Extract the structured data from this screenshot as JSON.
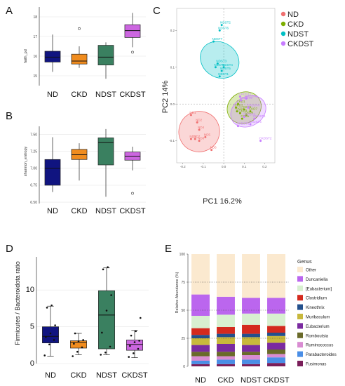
{
  "panels": {
    "A": {
      "letter": "A",
      "ylabel": "faith_pd"
    },
    "B": {
      "letter": "B",
      "ylabel": "shannon_entropy"
    },
    "C": {
      "letter": "C",
      "xlabel": "PC1 16.2%",
      "ylabel": "PC2 14%"
    },
    "D": {
      "letter": "D",
      "ylabel": "Firmicutes / Bacteroidota ratio"
    },
    "E": {
      "letter": "E",
      "ylabel": "Relative Abundance (%)",
      "legend_title": "Genus"
    }
  },
  "groups": [
    "ND",
    "CKD",
    "NDST",
    "CKDST"
  ],
  "group_colors": {
    "ND": "#101480",
    "CKD": "#f08c1e",
    "NDST": "#3a8060",
    "CKDST": "#cc66e0"
  },
  "chart_data": [
    {
      "panel": "A",
      "type": "box",
      "ylabel": "faith_pd",
      "categories": [
        "ND",
        "CKD",
        "NDST",
        "CKDST"
      ],
      "y_ticks": [
        15,
        16,
        17,
        18
      ],
      "ylim": [
        14.5,
        18.5
      ],
      "boxes": [
        {
          "name": "ND",
          "min": 15.2,
          "q1": 15.7,
          "median": 15.95,
          "q3": 16.25,
          "max": 17.1,
          "outliers": []
        },
        {
          "name": "CKD",
          "min": 15.4,
          "q1": 15.6,
          "median": 15.75,
          "q3": 16.1,
          "max": 16.5,
          "outliers": [
            17.4
          ]
        },
        {
          "name": "NDST",
          "min": 14.85,
          "q1": 15.55,
          "median": 15.95,
          "q3": 16.55,
          "max": 16.7,
          "outliers": []
        },
        {
          "name": "CKDST",
          "min": 16.45,
          "q1": 16.95,
          "median": 17.3,
          "q3": 17.6,
          "max": 18.2,
          "outliers": [
            16.2
          ]
        }
      ]
    },
    {
      "panel": "B",
      "type": "box",
      "ylabel": "shannon_entropy",
      "categories": [
        "ND",
        "CKD",
        "NDST",
        "CKDST"
      ],
      "y_ticks": [
        6.5,
        6.75,
        7.0,
        7.25,
        7.5
      ],
      "y_tick_labels": [
        "6.50",
        "6.75",
        "7.00",
        "7.25",
        "7.50"
      ],
      "ylim": [
        6.48,
        7.62
      ],
      "boxes": [
        {
          "name": "ND",
          "min": 6.65,
          "q1": 6.75,
          "median": 7.0,
          "q3": 7.13,
          "max": 7.46,
          "outliers": []
        },
        {
          "name": "CKD",
          "min": 6.82,
          "q1": 7.13,
          "median": 7.2,
          "q3": 7.28,
          "max": 7.37,
          "outliers": []
        },
        {
          "name": "NDST",
          "min": 6.58,
          "q1": 7.05,
          "median": 7.38,
          "q3": 7.45,
          "max": 7.58,
          "outliers": []
        },
        {
          "name": "CKDST",
          "min": 6.97,
          "q1": 7.12,
          "median": 7.18,
          "q3": 7.24,
          "max": 7.32,
          "outliers": [
            6.63
          ]
        }
      ]
    },
    {
      "panel": "C",
      "type": "scatter",
      "xlabel": "PC1 16.2%",
      "ylabel": "PC2 14%",
      "x_ticks": [
        -0.2,
        -0.1,
        0.0,
        0.1,
        0.2
      ],
      "x_tick_labels": [
        "-0.2",
        "-0.1",
        "0.0",
        "0.1",
        "0.2"
      ],
      "y_ticks": [
        -0.1,
        0.0,
        0.1,
        0.2
      ],
      "y_tick_labels": [
        "-0.1",
        "0.0",
        "0.1",
        "0.2"
      ],
      "xlim": [
        -0.23,
        0.25
      ],
      "ylim": [
        -0.16,
        0.26
      ],
      "legend": [
        "ND",
        "CKD",
        "NDST",
        "CKDST"
      ],
      "legend_colors": [
        "#f07070",
        "#7cae00",
        "#00bfc4",
        "#c77cff"
      ],
      "ellipses": [
        {
          "name": "ND",
          "cx": -0.12,
          "cy": -0.075,
          "rx": 0.1,
          "ry": 0.055,
          "angle": -28
        },
        {
          "name": "CKD",
          "cx": 0.1,
          "cy": -0.01,
          "rx": 0.085,
          "ry": 0.042,
          "angle": -28
        },
        {
          "name": "NDST",
          "cx": -0.02,
          "cy": 0.12,
          "rx": 0.085,
          "ry": 0.055,
          "angle": -55
        },
        {
          "name": "CKDST",
          "cx": 0.12,
          "cy": -0.02,
          "rx": 0.09,
          "ry": 0.04,
          "angle": -30
        }
      ],
      "series": [
        {
          "name": "ND",
          "points": [
            {
              "label": "ND1",
              "x": -0.16,
              "y": -0.03
            },
            {
              "label": "ND2",
              "x": -0.13,
              "y": -0.05
            },
            {
              "label": "ND3",
              "x": -0.16,
              "y": -0.095
            },
            {
              "label": "ND4",
              "x": -0.12,
              "y": -0.07
            },
            {
              "label": "ND5",
              "x": -0.09,
              "y": -0.09
            },
            {
              "label": "ND6",
              "x": -0.06,
              "y": -0.125
            },
            {
              "label": "ND7",
              "x": -0.14,
              "y": -0.095
            },
            {
              "label": "ND8",
              "x": -0.12,
              "y": -0.1
            }
          ]
        },
        {
          "name": "CKD",
          "points": [
            {
              "label": "CKD1",
              "x": 0.07,
              "y": 0.0
            },
            {
              "label": "CKD2",
              "x": 0.06,
              "y": -0.01
            },
            {
              "label": "CKD3",
              "x": 0.08,
              "y": -0.025
            },
            {
              "label": "CKD4",
              "x": 0.065,
              "y": -0.02
            },
            {
              "label": "CKD5",
              "x": 0.09,
              "y": -0.04
            },
            {
              "label": "CKD6",
              "x": 0.11,
              "y": -0.03
            },
            {
              "label": "CKD7",
              "x": 0.13,
              "y": -0.02
            },
            {
              "label": "CKD8",
              "x": 0.1,
              "y": -0.015
            }
          ]
        },
        {
          "name": "NDST",
          "points": [
            {
              "label": "NDST1",
              "x": -0.02,
              "y": 0.075
            },
            {
              "label": "NDST2",
              "x": -0.01,
              "y": 0.215
            },
            {
              "label": "NDST3",
              "x": -0.03,
              "y": 0.11
            },
            {
              "label": "NDST4",
              "x": 0.0,
              "y": 0.1
            },
            {
              "label": "NDST5",
              "x": -0.01,
              "y": 0.09
            },
            {
              "label": "NDST6",
              "x": -0.02,
              "y": 0.2
            },
            {
              "label": "NDST7",
              "x": -0.05,
              "y": 0.17
            },
            {
              "label": "NDST8",
              "x": -0.04,
              "y": 0.1
            }
          ]
        },
        {
          "name": "CKDST",
          "points": [
            {
              "label": "CKDST1",
              "x": 0.15,
              "y": -0.04
            },
            {
              "label": "CKDST2",
              "x": 0.18,
              "y": -0.1
            },
            {
              "label": "CKDST3",
              "x": 0.07,
              "y": -0.06
            },
            {
              "label": "CKDST4",
              "x": 0.12,
              "y": -0.01
            },
            {
              "label": "CKDST5",
              "x": 0.13,
              "y": -0.055
            },
            {
              "label": "CKDST6",
              "x": 0.11,
              "y": 0.015
            },
            {
              "label": "CKDST7",
              "x": 0.08,
              "y": 0.02
            },
            {
              "label": "CKDST8",
              "x": 0.1,
              "y": -0.035
            },
            {
              "label": "CKDST9",
              "x": 0.085,
              "y": 0.01
            }
          ]
        }
      ]
    },
    {
      "panel": "D",
      "type": "box",
      "ylabel": "Firmicutes / Bacteroidota ratio",
      "categories": [
        "ND",
        "CKD",
        "NDST",
        "CKDST"
      ],
      "y_ticks": [
        0,
        5,
        10
      ],
      "ylim": [
        0,
        14.5
      ],
      "boxes": [
        {
          "name": "ND",
          "min": 1.0,
          "q1": 2.8,
          "median": 3.7,
          "q3": 5.0,
          "max": 7.8,
          "points": [
            1.1,
            2.6,
            3.2,
            3.6,
            4.1,
            5.2,
            7.6,
            7.9
          ]
        },
        {
          "name": "CKD",
          "min": 1.2,
          "q1": 2.1,
          "median": 2.9,
          "q3": 3.1,
          "max": 4.1,
          "points": [
            1.0,
            1.6,
            2.2,
            2.7,
            3.0,
            3.2,
            4.1
          ]
        },
        {
          "name": "NDST",
          "min": 1.2,
          "q1": 2.0,
          "median": 6.6,
          "q3": 9.9,
          "max": 13.0,
          "points": [
            1.2,
            1.5,
            2.3,
            4.2,
            7.2,
            9.3,
            12.8,
            13.1
          ]
        },
        {
          "name": "CKDST",
          "min": 0.8,
          "q1": 1.8,
          "median": 2.6,
          "q3": 3.2,
          "max": 4.5,
          "points": [
            0.9,
            1.4,
            2.0,
            2.4,
            2.9,
            3.1,
            3.8,
            4.4,
            6.2
          ]
        }
      ]
    },
    {
      "panel": "E",
      "type": "bar",
      "stacked": true,
      "ylabel": "Relative Abundance (%)",
      "categories": [
        "ND",
        "CKD",
        "NDST",
        "CKDST"
      ],
      "y_ticks": [
        0,
        25,
        50,
        75,
        100
      ],
      "ylim": [
        0,
        100
      ],
      "legend_title": "Genus",
      "series": [
        {
          "name": "Fusimonas",
          "color": "#7a1e5a",
          "values": [
            2,
            2,
            2,
            3
          ]
        },
        {
          "name": "Parabacteroides",
          "color": "#4a8ee6",
          "values": [
            3,
            4,
            4,
            5
          ]
        },
        {
          "name": "Ruminococcus",
          "color": "#d98cd2",
          "values": [
            4,
            3,
            4,
            3
          ]
        },
        {
          "name": "Romboutsia",
          "color": "#6a6a2a",
          "values": [
            4,
            4,
            3,
            4
          ]
        },
        {
          "name": "Eubacterium",
          "color": "#7a2aa0",
          "values": [
            6,
            7,
            6,
            6
          ]
        },
        {
          "name": "Muribaculum",
          "color": "#c8b83c",
          "values": [
            6,
            6,
            7,
            6
          ]
        },
        {
          "name": "Kineothrix",
          "color": "#24508c",
          "values": [
            3,
            3,
            3,
            3
          ]
        },
        {
          "name": "Clostridium",
          "color": "#d42a1e",
          "values": [
            6,
            6,
            8,
            6
          ]
        },
        {
          "name": "[Eubacterium]",
          "color": "#d8f0d0",
          "values": [
            11,
            11,
            10,
            11
          ]
        },
        {
          "name": "Duncaniella",
          "color": "#bb66ee",
          "values": [
            19,
            16,
            14,
            14
          ]
        },
        {
          "name": "Other",
          "color": "#fbe9cf",
          "values": [
            36,
            38,
            39,
            39
          ]
        }
      ]
    }
  ]
}
